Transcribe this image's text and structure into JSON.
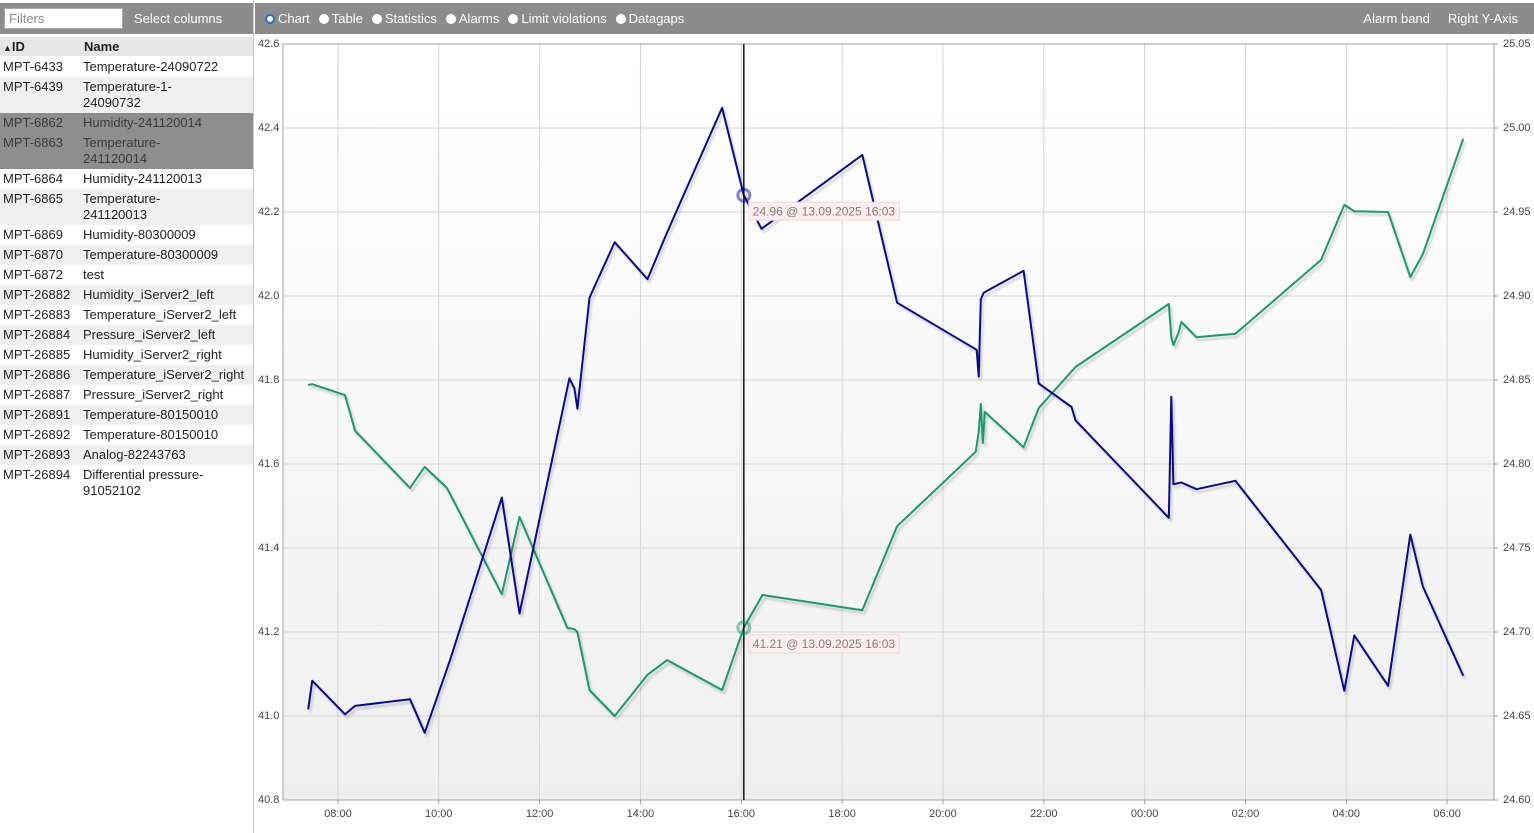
{
  "sidebar": {
    "filter_placeholder": "Filters",
    "select_columns": "Select columns",
    "columns": [
      "ID",
      "Name"
    ],
    "rows": [
      [
        "MPT-6433",
        "Temperature-24090722"
      ],
      [
        "MPT-6439",
        "Temperature-1-24090732"
      ],
      [
        "MPT-6862",
        "Humidity-241120014"
      ],
      [
        "MPT-6863",
        "Temperature-241120014"
      ],
      [
        "MPT-6864",
        "Humidity-241120013"
      ],
      [
        "MPT-6865",
        "Temperature-241120013"
      ],
      [
        "MPT-6869",
        "Humidity-80300009"
      ],
      [
        "MPT-6870",
        "Temperature-80300009"
      ],
      [
        "MPT-6872",
        "test"
      ],
      [
        "MPT-26882",
        "Humidity_iServer2_left"
      ],
      [
        "MPT-26883",
        "Temperature_iServer2_left"
      ],
      [
        "MPT-26884",
        "Pressure_iServer2_left"
      ],
      [
        "MPT-26885",
        "Humidity_iServer2_right"
      ],
      [
        "MPT-26886",
        "Temperature_iServer2_right"
      ],
      [
        "MPT-26887",
        "Pressure_iServer2_right"
      ],
      [
        "MPT-26891",
        "Temperature-80150010"
      ],
      [
        "MPT-26892",
        "Temperature-80150010"
      ],
      [
        "MPT-26893",
        "Analog-82243763"
      ],
      [
        "MPT-26894",
        "Differential pressure-91052102"
      ]
    ],
    "selected_rows": [
      2,
      3
    ]
  },
  "toolbar": {
    "views": [
      "Chart",
      "Table",
      "Statistics",
      "Alarms",
      "Limit violations",
      "Datagaps"
    ],
    "selected_view": 0,
    "right": [
      "Alarm band",
      "Right Y-Axis"
    ]
  },
  "chart_data": {
    "type": "line",
    "xlim": [
      6.91,
      30.93
    ],
    "xticks": [
      {
        "value": 8,
        "label": "08:00"
      },
      {
        "value": 10,
        "label": "10:00"
      },
      {
        "value": 12,
        "label": "12:00"
      },
      {
        "value": 14,
        "label": "14:00"
      },
      {
        "value": 16,
        "label": "16:00"
      },
      {
        "value": 18,
        "label": "18:00"
      },
      {
        "value": 20,
        "label": "20:00"
      },
      {
        "value": 22,
        "label": "22:00"
      },
      {
        "value": 24,
        "label": "00:00"
      },
      {
        "value": 26,
        "label": "02:00"
      },
      {
        "value": 28,
        "label": "04:00"
      },
      {
        "value": 30,
        "label": "06:00"
      }
    ],
    "ylim": [
      40.8,
      42.6
    ],
    "yticks": [
      40.8,
      {
        "value": 41.0,
        "label": "41.0"
      },
      41.2,
      41.4,
      41.6,
      41.8,
      {
        "value": 42.0,
        "label": "42.0"
      },
      42.2,
      42.4,
      42.6
    ],
    "y2lim": [
      24.6,
      25.05
    ],
    "y2ticks": [
      {
        "value": 24.6,
        "label": "24.60"
      },
      24.65,
      {
        "value": 24.7,
        "label": "24.70"
      },
      24.75,
      {
        "value": 24.8,
        "label": "24.80"
      },
      24.85,
      {
        "value": 24.9,
        "label": "24.90"
      },
      24.95,
      {
        "value": 25.0,
        "label": "25.00"
      },
      25.05
    ],
    "grid": true,
    "series": [
      {
        "color": "#1a9a6c",
        "x": [
          7.41,
          7.49,
          8.14,
          8.34,
          9.43,
          9.72,
          10.16,
          11.25,
          11.6,
          12.55,
          12.69,
          12.75,
          12.99,
          13.49,
          14.14,
          14.53,
          15.62,
          16.05,
          16.42,
          18.4,
          19.09,
          20.65,
          20.71,
          20.75,
          20.79,
          20.83,
          21.6,
          21.9,
          22.63,
          24.48,
          24.53,
          24.57,
          24.67,
          24.73,
          25.03,
          25.8,
          27.5,
          27.96,
          28.16,
          28.83,
          29.27,
          29.52,
          30.32
        ],
        "values": [
          41.788,
          41.79,
          41.764,
          41.679,
          41.543,
          41.593,
          41.543,
          41.29,
          41.474,
          41.21,
          41.207,
          41.2,
          41.062,
          41.0,
          41.098,
          41.133,
          41.062,
          41.21,
          41.288,
          41.252,
          41.452,
          41.629,
          41.676,
          41.743,
          41.65,
          41.724,
          41.64,
          41.733,
          41.831,
          41.981,
          41.902,
          41.883,
          41.912,
          41.938,
          41.902,
          41.91,
          42.086,
          42.217,
          42.202,
          42.2,
          42.045,
          42.1,
          42.374
        ]
      },
      {
        "color": "#0a0a8c",
        "axis": "y2",
        "x": [
          7.41,
          7.49,
          8.14,
          8.34,
          9.43,
          9.72,
          10.22,
          11.25,
          11.6,
          12.59,
          12.69,
          12.75,
          12.99,
          13.49,
          14.14,
          14.53,
          15.62,
          16.05,
          16.4,
          18.4,
          19.09,
          20.67,
          20.71,
          20.75,
          20.81,
          21.6,
          21.9,
          22.55,
          22.63,
          24.48,
          24.53,
          24.57,
          24.73,
          25.03,
          25.8,
          27.5,
          27.96,
          28.16,
          28.83,
          29.27,
          29.52,
          30.32
        ],
        "values": [
          24.654,
          24.671,
          24.651,
          24.656,
          24.66,
          24.64,
          24.683,
          24.78,
          24.711,
          24.851,
          24.845,
          24.833,
          24.899,
          24.932,
          24.91,
          24.938,
          25.012,
          24.96,
          24.94,
          24.984,
          24.896,
          24.868,
          24.852,
          24.898,
          24.902,
          24.915,
          24.848,
          24.834,
          24.826,
          24.768,
          24.84,
          24.788,
          24.789,
          24.785,
          24.79,
          24.725,
          24.665,
          24.698,
          24.668,
          24.758,
          24.727,
          24.674
        ]
      }
    ],
    "annotations": [
      {
        "text": "24.96 @ 13.09.2025 16:03",
        "x": 16.05,
        "y": 24.96,
        "axis": "y2"
      },
      {
        "text": "41.21 @ 13.09.2025 16:03",
        "x": 16.05,
        "y": 41.21
      }
    ]
  }
}
